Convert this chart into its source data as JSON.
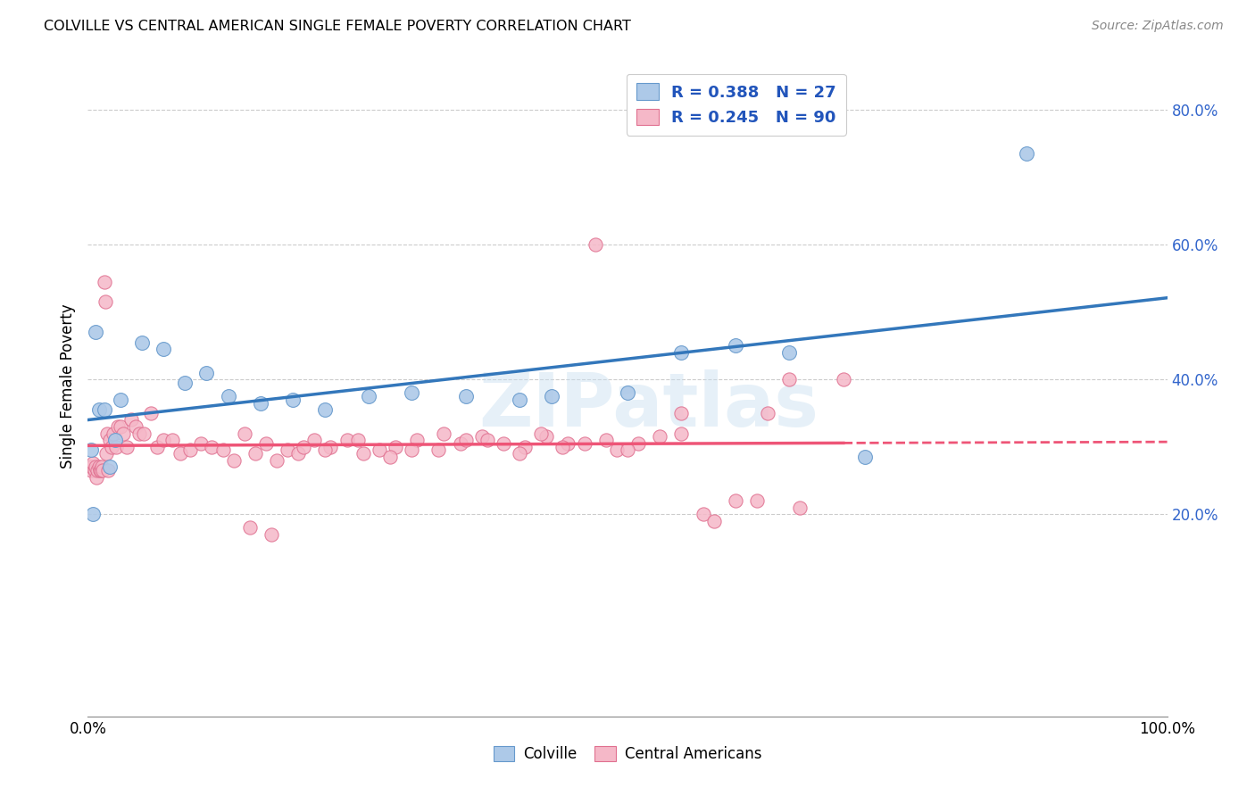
{
  "title": "COLVILLE VS CENTRAL AMERICAN SINGLE FEMALE POVERTY CORRELATION CHART",
  "source": "Source: ZipAtlas.com",
  "ylabel": "Single Female Poverty",
  "yticks": [
    "20.0%",
    "40.0%",
    "60.0%",
    "80.0%"
  ],
  "ytick_vals": [
    0.2,
    0.4,
    0.6,
    0.8
  ],
  "xlim": [
    0.0,
    1.0
  ],
  "ylim": [
    -0.1,
    0.88
  ],
  "colville_color": "#adc9e8",
  "colville_edge": "#6699cc",
  "central_color": "#f5b8c8",
  "central_edge": "#e07090",
  "trend_colville": "#3377bb",
  "trend_central": "#ee5577",
  "watermark": "ZIPatlas",
  "legend_R_colville": "R = 0.388",
  "legend_N_colville": "N = 27",
  "legend_R_central": "R = 0.245",
  "legend_N_central": "N = 90",
  "background_color": "#ffffff",
  "grid_color": "#cccccc",
  "colville_x": [
    0.003,
    0.005,
    0.007,
    0.01,
    0.015,
    0.02,
    0.025,
    0.03,
    0.05,
    0.07,
    0.09,
    0.11,
    0.13,
    0.16,
    0.19,
    0.22,
    0.26,
    0.3,
    0.35,
    0.4,
    0.43,
    0.5,
    0.55,
    0.6,
    0.65,
    0.72,
    0.87
  ],
  "colville_y": [
    0.295,
    0.2,
    0.47,
    0.355,
    0.355,
    0.27,
    0.31,
    0.37,
    0.455,
    0.445,
    0.395,
    0.41,
    0.375,
    0.365,
    0.37,
    0.355,
    0.375,
    0.38,
    0.375,
    0.37,
    0.375,
    0.38,
    0.44,
    0.45,
    0.44,
    0.285,
    0.735
  ],
  "central_x": [
    0.002,
    0.003,
    0.004,
    0.005,
    0.006,
    0.007,
    0.008,
    0.009,
    0.01,
    0.011,
    0.012,
    0.013,
    0.014,
    0.015,
    0.016,
    0.017,
    0.018,
    0.019,
    0.02,
    0.022,
    0.024,
    0.026,
    0.028,
    0.03,
    0.033,
    0.036,
    0.04,
    0.044,
    0.048,
    0.052,
    0.058,
    0.064,
    0.07,
    0.078,
    0.086,
    0.095,
    0.105,
    0.115,
    0.125,
    0.135,
    0.145,
    0.155,
    0.165,
    0.175,
    0.185,
    0.195,
    0.21,
    0.225,
    0.24,
    0.255,
    0.27,
    0.285,
    0.305,
    0.325,
    0.345,
    0.365,
    0.385,
    0.405,
    0.425,
    0.445,
    0.47,
    0.49,
    0.51,
    0.53,
    0.55,
    0.57,
    0.6,
    0.63,
    0.66,
    0.7,
    0.37,
    0.4,
    0.42,
    0.44,
    0.33,
    0.35,
    0.3,
    0.28,
    0.2,
    0.22,
    0.25,
    0.58,
    0.62,
    0.65,
    0.55,
    0.5,
    0.48,
    0.46,
    0.15,
    0.17
  ],
  "central_y": [
    0.27,
    0.265,
    0.27,
    0.275,
    0.265,
    0.27,
    0.255,
    0.265,
    0.27,
    0.265,
    0.265,
    0.27,
    0.265,
    0.545,
    0.515,
    0.29,
    0.32,
    0.265,
    0.31,
    0.3,
    0.32,
    0.3,
    0.33,
    0.33,
    0.32,
    0.3,
    0.34,
    0.33,
    0.32,
    0.32,
    0.35,
    0.3,
    0.31,
    0.31,
    0.29,
    0.295,
    0.305,
    0.3,
    0.295,
    0.28,
    0.32,
    0.29,
    0.305,
    0.28,
    0.295,
    0.29,
    0.31,
    0.3,
    0.31,
    0.29,
    0.295,
    0.3,
    0.31,
    0.295,
    0.305,
    0.315,
    0.305,
    0.3,
    0.315,
    0.305,
    0.6,
    0.295,
    0.305,
    0.315,
    0.32,
    0.2,
    0.22,
    0.35,
    0.21,
    0.4,
    0.31,
    0.29,
    0.32,
    0.3,
    0.32,
    0.31,
    0.295,
    0.285,
    0.3,
    0.295,
    0.31,
    0.19,
    0.22,
    0.4,
    0.35,
    0.295,
    0.31,
    0.305,
    0.18,
    0.17
  ]
}
